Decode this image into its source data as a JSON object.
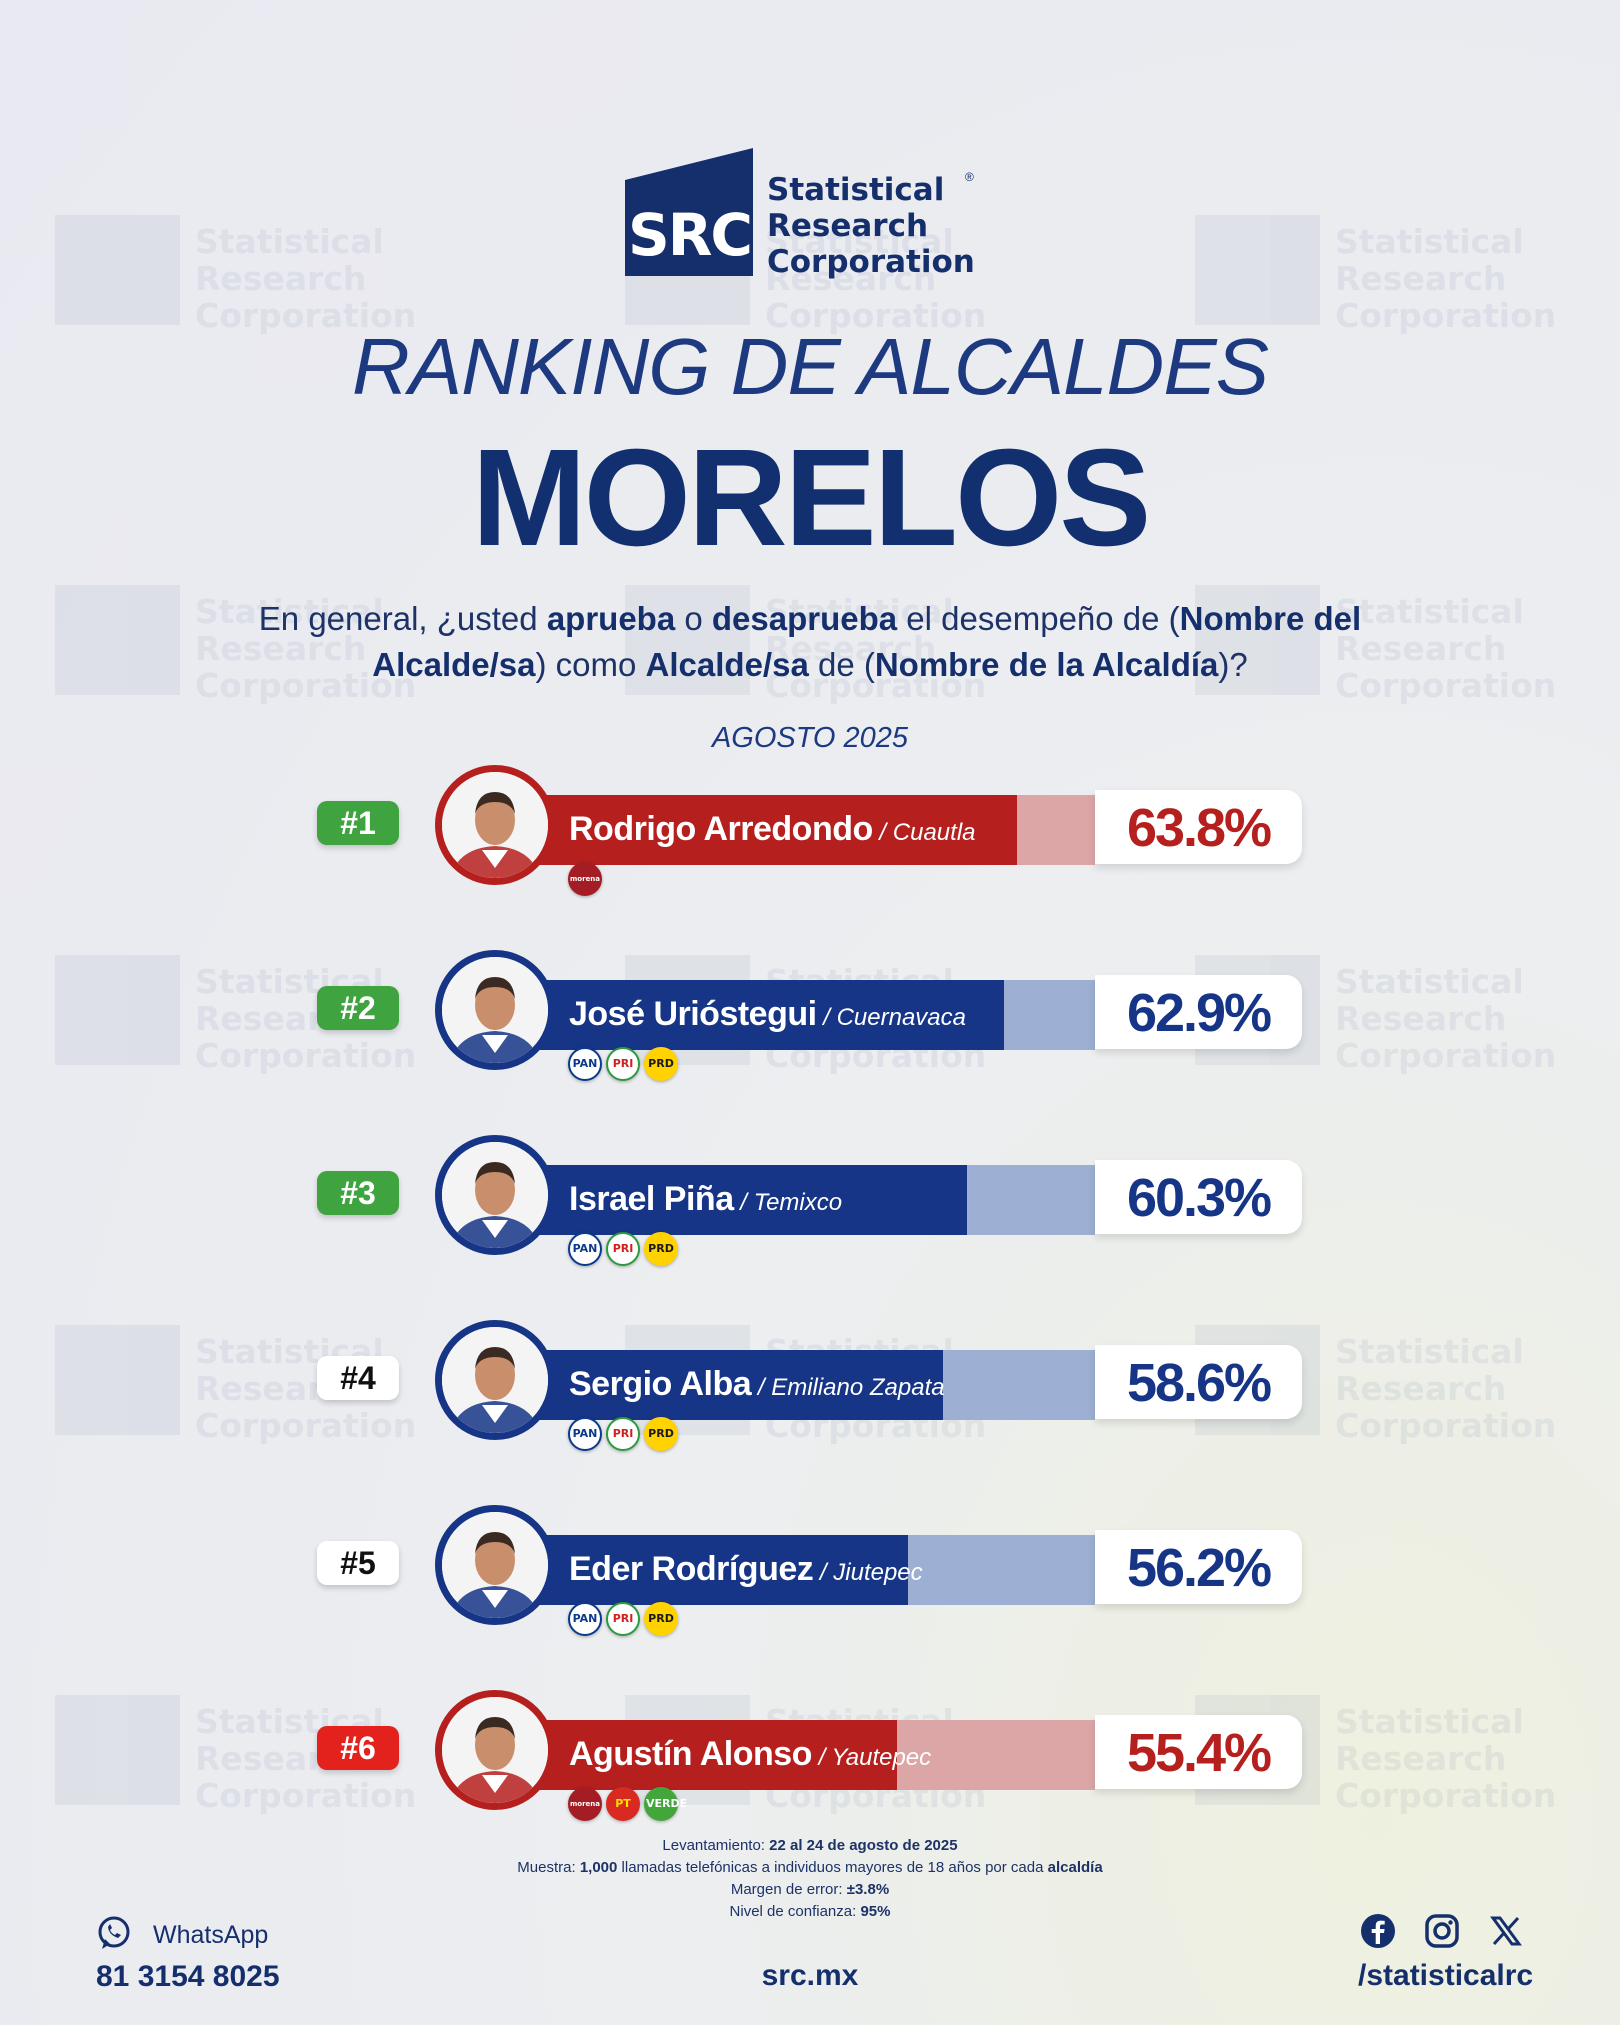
{
  "brand": {
    "logo_mark": "SRC",
    "name_lines": [
      "Statistical",
      "Research",
      "Corporation"
    ],
    "registered": "®",
    "color": "#142f6c"
  },
  "header": {
    "title": "RANKING DE ALCALDES",
    "state": "MORELOS",
    "question_parts": [
      {
        "t": "En general, ¿usted ",
        "b": false
      },
      {
        "t": "aprueba",
        "b": true
      },
      {
        "t": " o ",
        "b": false
      },
      {
        "t": "desaprueba",
        "b": true
      },
      {
        "t": " el desempeño de (",
        "b": false
      },
      {
        "t": "Nombre del Alcalde/sa",
        "b": true
      },
      {
        "t": ") como ",
        "b": false
      },
      {
        "t": "Alcalde/sa",
        "b": true
      },
      {
        "t": " de (",
        "b": false
      },
      {
        "t": "Nombre de la Alcaldía",
        "b": true
      },
      {
        "t": ")?",
        "b": false
      }
    ],
    "period": "AGOSTO 2025"
  },
  "chart_data": {
    "type": "bar",
    "orientation": "horizontal",
    "unit": "%",
    "xlim": [
      0,
      100
    ],
    "categories": [
      "Rodrigo Arredondo",
      "José Urióstegui",
      "Israel Piña",
      "Sergio Alba",
      "Eder Rodríguez",
      "Agustín Alonso"
    ],
    "values": [
      63.8,
      62.9,
      60.3,
      58.6,
      56.2,
      55.4
    ],
    "rows": [
      {
        "rank": "#1",
        "rank_style": "green",
        "name": "Rodrigo Arredondo",
        "municipality": "Cuautla",
        "value": 63.8,
        "label": "63.8%",
        "bar_color": "#b5201f",
        "rest_color": "#dca6a7",
        "pct_color": "#b5201f",
        "parties": [
          "morena"
        ]
      },
      {
        "rank": "#2",
        "rank_style": "green",
        "name": "José Urióstegui",
        "municipality": "Cuernavaca",
        "value": 62.9,
        "label": "62.9%",
        "bar_color": "#163586",
        "rest_color": "#9db0d3",
        "pct_color": "#163586",
        "parties": [
          "PAN",
          "PRI",
          "PRD"
        ]
      },
      {
        "rank": "#3",
        "rank_style": "green",
        "name": "Israel Piña",
        "municipality": "Temixco",
        "value": 60.3,
        "label": "60.3%",
        "bar_color": "#163586",
        "rest_color": "#9db0d3",
        "pct_color": "#163586",
        "parties": [
          "PAN",
          "PRI",
          "PRD"
        ]
      },
      {
        "rank": "#4",
        "rank_style": "white",
        "name": "Sergio Alba",
        "municipality": "Emiliano Zapata",
        "value": 58.6,
        "label": "58.6%",
        "bar_color": "#163586",
        "rest_color": "#9db0d3",
        "pct_color": "#163586",
        "parties": [
          "PAN",
          "PRI",
          "PRD"
        ]
      },
      {
        "rank": "#5",
        "rank_style": "white",
        "name": "Eder Rodríguez",
        "municipality": "Jiutepec",
        "value": 56.2,
        "label": "56.2%",
        "bar_color": "#163586",
        "rest_color": "#9db0d3",
        "pct_color": "#163586",
        "parties": [
          "PAN",
          "PRI",
          "PRD"
        ]
      },
      {
        "rank": "#6",
        "rank_style": "red",
        "name": "Agustín Alonso",
        "municipality": "Yautepec",
        "value": 55.4,
        "label": "55.4%",
        "bar_color": "#b5201f",
        "rest_color": "#dca6a7",
        "pct_color": "#b5201f",
        "parties": [
          "morena",
          "PT",
          "VERDE"
        ]
      }
    ]
  },
  "footer": {
    "notes": [
      {
        "label": "Levantamiento: ",
        "value": "22 al 24 de agosto de 2025",
        "suffix": "",
        "tail": ""
      },
      {
        "label": "Muestra: ",
        "value": "1,000",
        "suffix": " llamadas telefónicas a individuos mayores de 18 años por cada ",
        "tail": "alcaldía"
      },
      {
        "label": "Margen de error: ",
        "value": "±3.8%",
        "suffix": "",
        "tail": ""
      },
      {
        "label": "Nivel de confianza: ",
        "value": "95%",
        "suffix": "",
        "tail": ""
      }
    ],
    "whatsapp_label": "WhatsApp",
    "whatsapp_number": "81 3154 8025",
    "website": "src.mx",
    "social_handle": "/statisticalrc",
    "social_icons": [
      "facebook-icon",
      "instagram-icon",
      "x-icon"
    ]
  }
}
